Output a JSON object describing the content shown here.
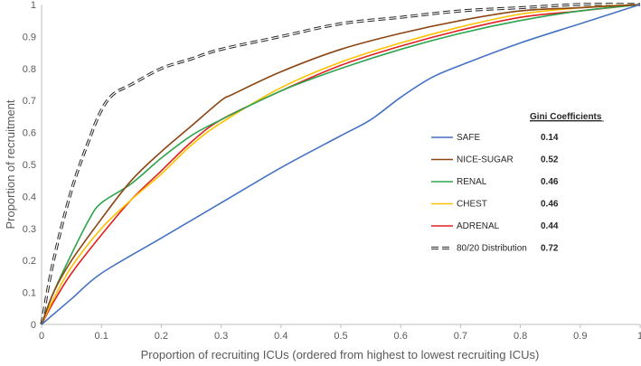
{
  "chart_data": {
    "type": "line",
    "title": "",
    "xlabel": "Proportion of recruiting ICUs (ordered from highest to lowest recruiting ICUs)",
    "ylabel": "Proportion of recruitment",
    "xlim": [
      0,
      1
    ],
    "ylim": [
      0,
      1
    ],
    "x_ticks": [
      "0",
      "0.1",
      "0.2",
      "0.3",
      "0.4",
      "0.5",
      "0.6",
      "0.7",
      "0.8",
      "0.9",
      "1"
    ],
    "y_ticks": [
      "0",
      "0.1",
      "0.2",
      "0.3",
      "0.4",
      "0.5",
      "0.6",
      "0.7",
      "0.8",
      "0.9",
      "1"
    ],
    "grid": false,
    "legend_heading": "Gini Coefficients",
    "legend_position": "bottom-right",
    "series": [
      {
        "name": "SAFE",
        "gini": "0.14",
        "color": "#4472c4",
        "style": "solid",
        "points": [
          [
            0,
            0
          ],
          [
            0.05,
            0.08
          ],
          [
            0.1,
            0.16
          ],
          [
            0.2,
            0.27
          ],
          [
            0.3,
            0.38
          ],
          [
            0.4,
            0.49
          ],
          [
            0.5,
            0.59
          ],
          [
            0.55,
            0.64
          ],
          [
            0.6,
            0.71
          ],
          [
            0.65,
            0.77
          ],
          [
            0.7,
            0.81
          ],
          [
            0.8,
            0.88
          ],
          [
            0.9,
            0.94
          ],
          [
            1,
            1
          ]
        ]
      },
      {
        "name": "NICE-SUGAR",
        "gini": "0.52",
        "color": "#8b4513",
        "style": "solid",
        "points": [
          [
            0,
            0
          ],
          [
            0.02,
            0.1
          ],
          [
            0.05,
            0.2
          ],
          [
            0.1,
            0.33
          ],
          [
            0.15,
            0.45
          ],
          [
            0.2,
            0.54
          ],
          [
            0.25,
            0.62
          ],
          [
            0.3,
            0.7
          ],
          [
            0.32,
            0.72
          ],
          [
            0.4,
            0.79
          ],
          [
            0.5,
            0.86
          ],
          [
            0.6,
            0.91
          ],
          [
            0.7,
            0.95
          ],
          [
            0.8,
            0.98
          ],
          [
            0.9,
            0.99
          ],
          [
            1,
            1
          ]
        ]
      },
      {
        "name": "RENAL",
        "gini": "0.46",
        "color": "#2da44e",
        "style": "solid",
        "points": [
          [
            0,
            0
          ],
          [
            0.02,
            0.1
          ],
          [
            0.05,
            0.22
          ],
          [
            0.08,
            0.33
          ],
          [
            0.1,
            0.38
          ],
          [
            0.15,
            0.44
          ],
          [
            0.2,
            0.52
          ],
          [
            0.25,
            0.59
          ],
          [
            0.3,
            0.64
          ],
          [
            0.4,
            0.73
          ],
          [
            0.5,
            0.8
          ],
          [
            0.6,
            0.86
          ],
          [
            0.7,
            0.91
          ],
          [
            0.8,
            0.95
          ],
          [
            0.9,
            0.98
          ],
          [
            1,
            1
          ]
        ]
      },
      {
        "name": "CHEST",
        "gini": "0.46",
        "color": "#ffc000",
        "style": "solid",
        "points": [
          [
            0,
            0
          ],
          [
            0.02,
            0.08
          ],
          [
            0.05,
            0.18
          ],
          [
            0.1,
            0.3
          ],
          [
            0.15,
            0.39
          ],
          [
            0.2,
            0.47
          ],
          [
            0.25,
            0.56
          ],
          [
            0.3,
            0.63
          ],
          [
            0.4,
            0.74
          ],
          [
            0.5,
            0.82
          ],
          [
            0.6,
            0.88
          ],
          [
            0.7,
            0.93
          ],
          [
            0.8,
            0.97
          ],
          [
            0.9,
            0.99
          ],
          [
            1,
            1
          ]
        ]
      },
      {
        "name": "ADRENAL",
        "gini": "0.44",
        "color": "#e02020",
        "style": "solid",
        "points": [
          [
            0,
            0
          ],
          [
            0.02,
            0.07
          ],
          [
            0.05,
            0.16
          ],
          [
            0.1,
            0.28
          ],
          [
            0.15,
            0.39
          ],
          [
            0.2,
            0.48
          ],
          [
            0.25,
            0.57
          ],
          [
            0.3,
            0.64
          ],
          [
            0.4,
            0.73
          ],
          [
            0.5,
            0.81
          ],
          [
            0.6,
            0.87
          ],
          [
            0.7,
            0.92
          ],
          [
            0.8,
            0.96
          ],
          [
            0.9,
            0.98
          ],
          [
            1,
            1
          ]
        ]
      },
      {
        "name": "80/20 Distribution",
        "gini": "0.72",
        "color": "#262626",
        "style": "dashed",
        "points": [
          [
            0,
            0
          ],
          [
            0.02,
            0.2
          ],
          [
            0.05,
            0.42
          ],
          [
            0.08,
            0.58
          ],
          [
            0.1,
            0.67
          ],
          [
            0.12,
            0.72
          ],
          [
            0.15,
            0.75
          ],
          [
            0.2,
            0.8
          ],
          [
            0.25,
            0.83
          ],
          [
            0.3,
            0.86
          ],
          [
            0.4,
            0.9
          ],
          [
            0.5,
            0.94
          ],
          [
            0.6,
            0.96
          ],
          [
            0.7,
            0.98
          ],
          [
            0.8,
            0.99
          ],
          [
            0.9,
            1
          ],
          [
            1,
            1
          ]
        ]
      }
    ]
  }
}
